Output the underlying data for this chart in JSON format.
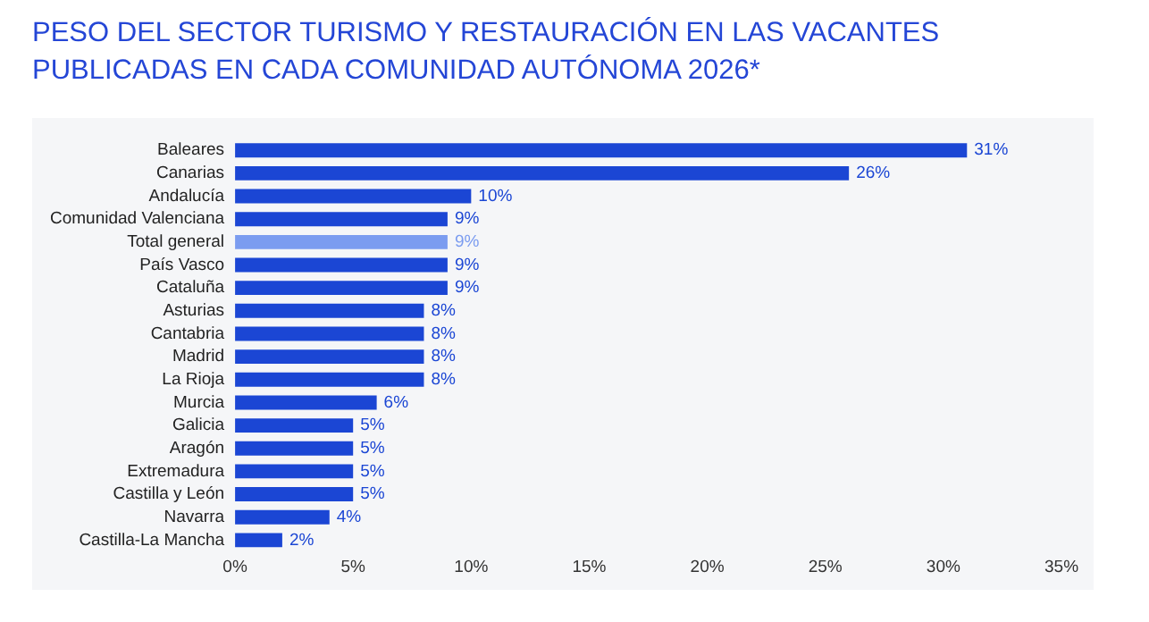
{
  "chart_data": {
    "type": "bar",
    "orientation": "horizontal",
    "title": "PESO DEL SECTOR TURISMO Y RESTAURACIÓN EN LAS VACANTES PUBLICADAS EN CADA COMUNIDAD AUTÓNOMA 2026*",
    "categories": [
      "Baleares",
      "Canarias",
      "Andalucía",
      "Comunidad Valenciana",
      "Total general",
      "País Vasco",
      "Cataluña",
      "Asturias",
      "Cantabria",
      "Madrid",
      "La Rioja",
      "Murcia",
      "Galicia",
      "Aragón",
      "Extremadura",
      "Castilla y León",
      "Navarra",
      "Castilla-La Mancha"
    ],
    "values": [
      31,
      26,
      10,
      9,
      9,
      9,
      9,
      8,
      8,
      8,
      8,
      6,
      5,
      5,
      5,
      5,
      4,
      2
    ],
    "value_labels": [
      "31%",
      "26%",
      "10%",
      "9%",
      "9%",
      "9%",
      "9%",
      "8%",
      "8%",
      "8%",
      "8%",
      "6%",
      "5%",
      "5%",
      "5%",
      "5%",
      "4%",
      "2%"
    ],
    "colors": [
      "#1b46d4",
      "#1b46d4",
      "#1b46d4",
      "#1b46d4",
      "#7b9cf0",
      "#1b46d4",
      "#1b46d4",
      "#1b46d4",
      "#1b46d4",
      "#1b46d4",
      "#1b46d4",
      "#1b46d4",
      "#1b46d4",
      "#1b46d4",
      "#1b46d4",
      "#1b46d4",
      "#1b46d4",
      "#1b46d4"
    ],
    "xlim": [
      0,
      35
    ],
    "xticks": [
      {
        "value": 0,
        "label": "0%"
      },
      {
        "value": 5,
        "label": "5%"
      },
      {
        "value": 10,
        "label": "10%"
      },
      {
        "value": 15,
        "label": "15%"
      },
      {
        "value": 20,
        "label": "20%"
      },
      {
        "value": 25,
        "label": "25%"
      },
      {
        "value": 30,
        "label": "30%"
      },
      {
        "value": 35,
        "label": "35%"
      }
    ],
    "grid": false,
    "legend": false
  }
}
